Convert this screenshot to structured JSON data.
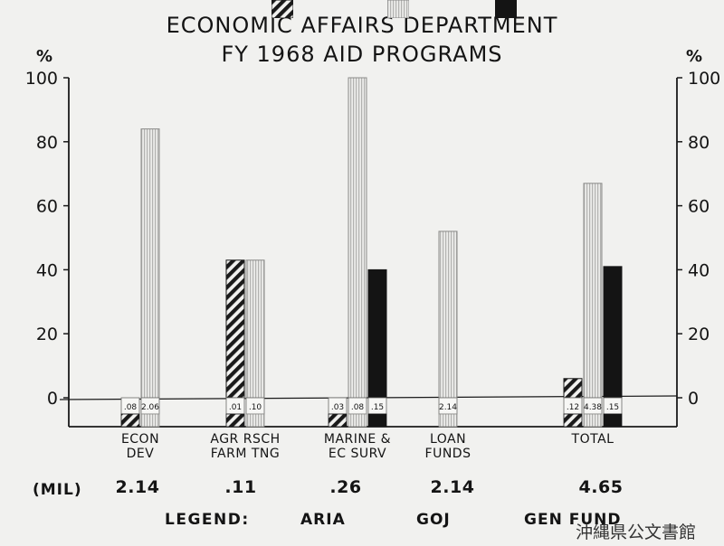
{
  "title_line1": "ECONOMIC AFFAIRS DEPARTMENT",
  "title_line2": "FY 1968 AID PROGRAMS",
  "chart_data": {
    "type": "bar",
    "y_unit_label": "%",
    "ylim": [
      -8,
      100
    ],
    "yticks": [
      0,
      20,
      40,
      60,
      80,
      100
    ],
    "categories": [
      "ECON DEV",
      "AGR RSCH FARM TNG",
      "MARINE & EC SURV",
      "LOAN FUNDS",
      "TOTAL"
    ],
    "category_labels": [
      [
        "ECON",
        "DEV"
      ],
      [
        "AGR RSCH",
        "FARM TNG"
      ],
      [
        "MARINE &",
        "EC SURV"
      ],
      [
        "LOAN",
        "FUNDS"
      ],
      [
        "TOTAL"
      ]
    ],
    "series": [
      {
        "name": "ARIA",
        "values": [
          null,
          43,
          null,
          null,
          6
        ],
        "amounts": [
          ".08",
          ".01",
          ".03",
          null,
          ".12"
        ]
      },
      {
        "name": "GOJ",
        "values": [
          84,
          43,
          100,
          52,
          67
        ],
        "amounts": [
          "2.06",
          ".10",
          ".08",
          "2.14",
          "4.38"
        ]
      },
      {
        "name": "GEN FUND",
        "values": [
          null,
          null,
          40,
          null,
          41
        ],
        "amounts": [
          null,
          null,
          ".15",
          null,
          ".15"
        ]
      }
    ],
    "mil_label": "(MIL)",
    "mil_totals": [
      "2.14",
      ".11",
      ".26",
      "2.14",
      "4.65"
    ],
    "legend_title": "LEGEND:",
    "legend": [
      "ARIA",
      "GOJ",
      "GEN FUND"
    ],
    "colors": {
      "aria": "#1a1a1a",
      "goj": "#bdbdbb",
      "gen_fund": "#141414",
      "background": "#f1f1ef"
    }
  },
  "watermark": "沖縄県公文書館"
}
